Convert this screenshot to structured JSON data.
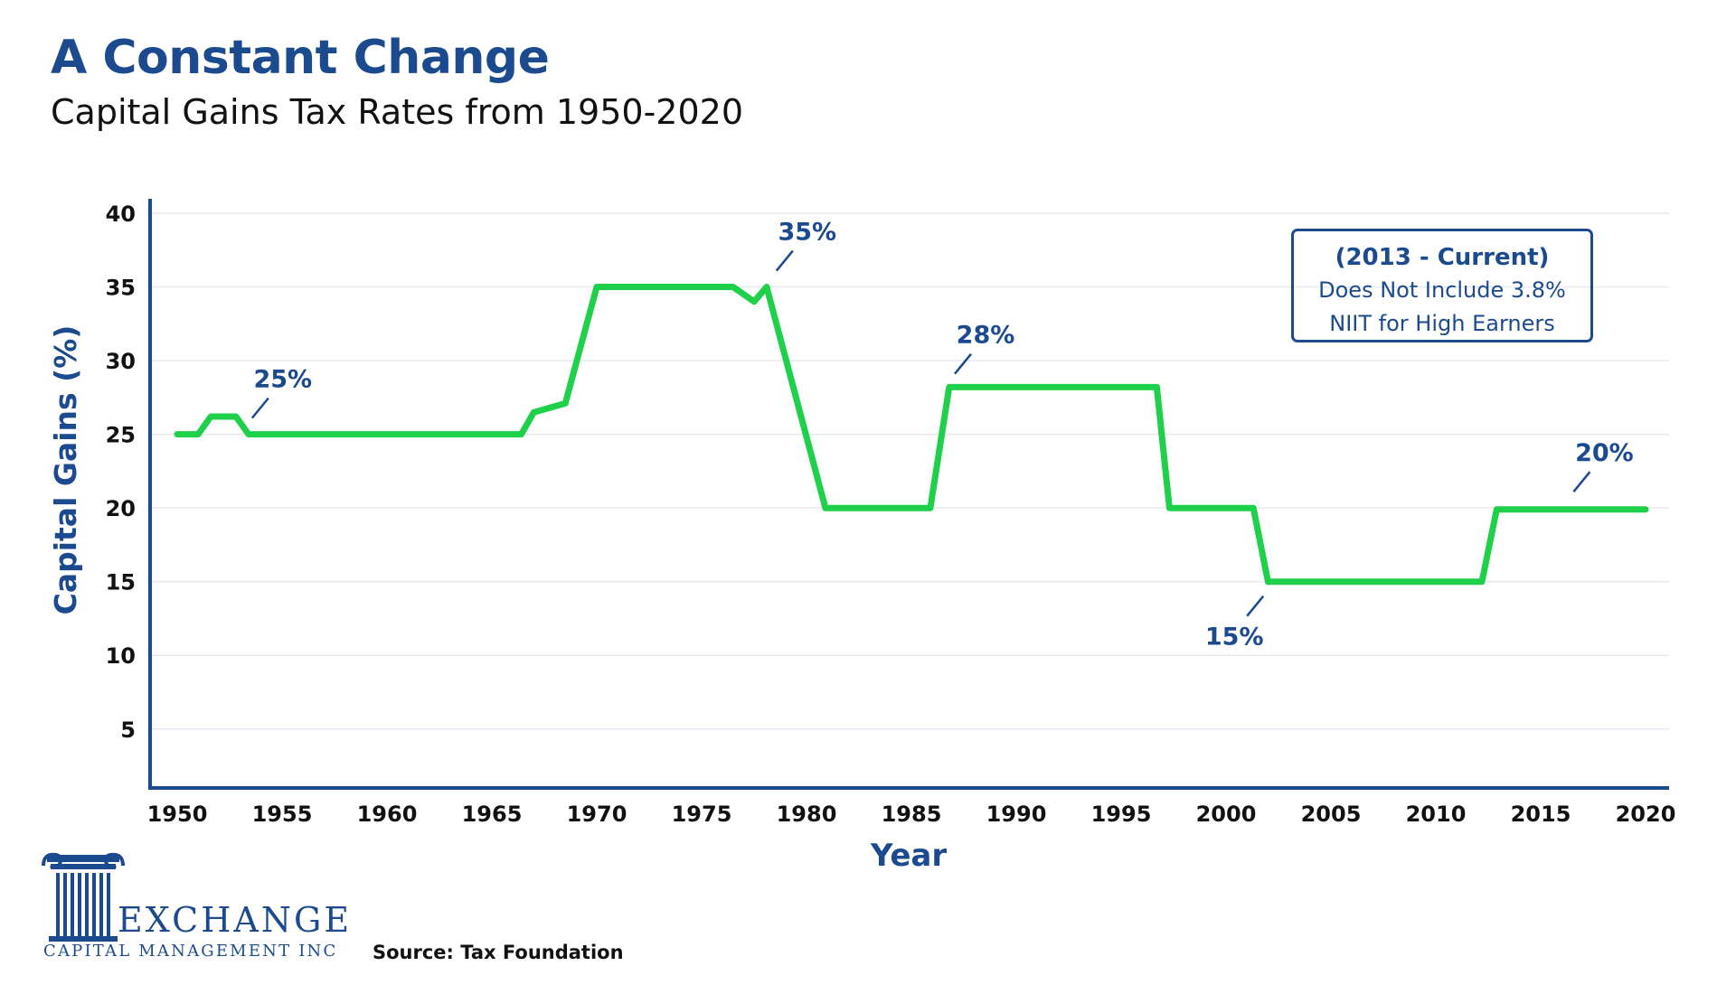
{
  "header": {
    "title": "A Constant Change",
    "subtitle": "Capital Gains Tax Rates from 1950-2020"
  },
  "colors": {
    "brand": "#1c4a8e",
    "line": "#1fd14a",
    "grid": "#e6e9ef",
    "text": "#111111"
  },
  "chart_data": {
    "type": "line",
    "title": "A Constant Change",
    "subtitle": "Capital Gains Tax Rates from 1950-2020",
    "xlabel": "Year",
    "ylabel": "Capital Gains (%)",
    "xlim": [
      1950,
      2020
    ],
    "ylim": [
      1,
      40
    ],
    "x_ticks": [
      "1950",
      "1955",
      "1960",
      "1965",
      "1970",
      "1975",
      "1980",
      "1985",
      "1990",
      "1995",
      "2000",
      "2005",
      "2010",
      "2015",
      "2020"
    ],
    "y_ticks": [
      "40",
      "35",
      "30",
      "25",
      "20",
      "15",
      "10",
      "5"
    ],
    "grid": true,
    "series": [
      {
        "name": "Capital Gains Tax Rate",
        "x": [
          1950,
          1951,
          1951.6,
          1952.8,
          1953.4,
          1966.4,
          1967,
          1968.5,
          1970,
          1976.5,
          1977.5,
          1978.1,
          1980.9,
          1985.9,
          1986.8,
          1996.7,
          1997.3,
          2001.3,
          2002,
          2012.2,
          2012.9,
          2020
        ],
        "values": [
          25,
          25,
          26.2,
          26.2,
          25,
          25,
          26.5,
          27.1,
          35,
          35,
          34,
          35,
          20,
          20,
          28.2,
          28.2,
          20,
          20,
          15,
          15,
          19.9,
          19.9
        ]
      }
    ],
    "annotations": [
      {
        "label": "25%",
        "x": 1954,
        "y": 25
      },
      {
        "label": "35%",
        "x": 1979,
        "y": 35
      },
      {
        "label": "28%",
        "x": 1987.5,
        "y": 28
      },
      {
        "label": "15%",
        "x": 2001,
        "y": 15
      },
      {
        "label": "20%",
        "x": 2017,
        "y": 20
      }
    ],
    "note": {
      "line1": "(2013 - Current)",
      "line2": "Does Not Include 3.8%",
      "line3": "NIIT for High Earners"
    }
  },
  "footer": {
    "logo_name": "EXCHANGE",
    "logo_sub": "CAPITAL MANAGEMENT INC",
    "source": "Source: Tax Foundation"
  }
}
